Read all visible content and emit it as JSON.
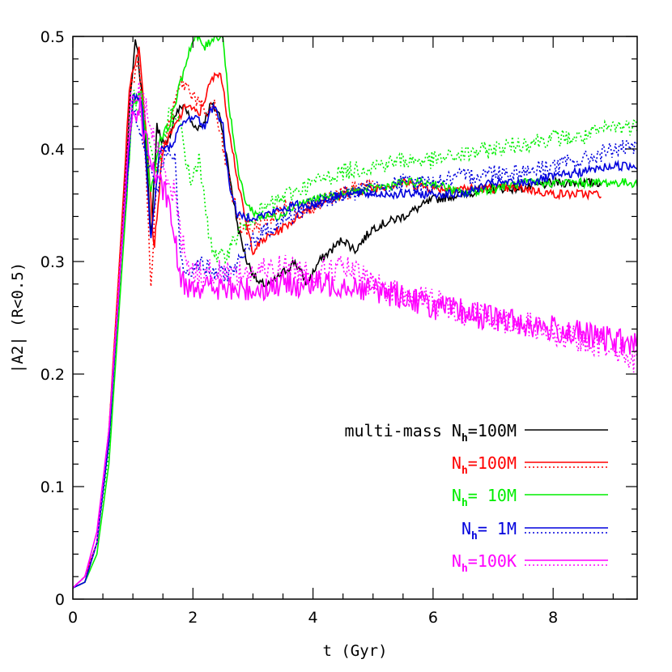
{
  "chart_data": {
    "type": "line",
    "title": "",
    "xlabel": "t (Gyr)",
    "ylabel": "|A2| (R<0.5)",
    "xlim": [
      0,
      9.4
    ],
    "ylim": [
      0,
      0.5
    ],
    "xticks": [
      0,
      2,
      4,
      6,
      8
    ],
    "xtick_labels": [
      "0",
      "2",
      "4",
      "6",
      "8"
    ],
    "yticks": [
      0,
      0.1,
      0.2,
      0.3,
      0.4,
      0.5
    ],
    "ytick_labels": [
      "0",
      "0.1",
      "0.2",
      "0.3",
      "0.4",
      "0.5"
    ],
    "grid": false,
    "legend_placement": "bottom-right",
    "legend": [
      {
        "prefix": "multi-mass ",
        "label": "N",
        "sub": "h",
        "value": "=100M",
        "color": "#000000",
        "dotted": false
      },
      {
        "prefix": "",
        "label": "N",
        "sub": "h",
        "value": "=100M",
        "color": "#ff0000",
        "dotted": true
      },
      {
        "prefix": "",
        "label": "N",
        "sub": "h",
        "value": "=  10M",
        "color": "#00ee00",
        "dotted": false
      },
      {
        "prefix": "",
        "label": "N",
        "sub": "h",
        "value": "=   1M",
        "color": "#0000dd",
        "dotted": true
      },
      {
        "prefix": "",
        "label": "N",
        "sub": "h",
        "value": "=100K",
        "color": "#ff00ff",
        "dotted": true
      }
    ],
    "series": [
      {
        "name": "multi-mass Nh=100M",
        "color": "#000000",
        "style": "solid",
        "noise": 0.004,
        "x": [
          0,
          0.2,
          0.4,
          0.6,
          0.8,
          0.95,
          1.05,
          1.2,
          1.3,
          1.4,
          1.55,
          1.7,
          1.85,
          2.0,
          2.15,
          2.3,
          2.45,
          2.6,
          2.75,
          2.9,
          3.1,
          3.3,
          3.5,
          3.7,
          3.9,
          4.1,
          4.3,
          4.5,
          4.7,
          5.0,
          5.5,
          6.0,
          6.5,
          7.0,
          7.5,
          8.0,
          8.5,
          8.8
        ],
        "y": [
          0.01,
          0.015,
          0.05,
          0.14,
          0.3,
          0.44,
          0.5,
          0.42,
          0.32,
          0.42,
          0.4,
          0.43,
          0.44,
          0.42,
          0.42,
          0.44,
          0.43,
          0.38,
          0.33,
          0.3,
          0.28,
          0.28,
          0.29,
          0.3,
          0.28,
          0.3,
          0.31,
          0.32,
          0.31,
          0.33,
          0.34,
          0.355,
          0.36,
          0.365,
          0.365,
          0.37,
          0.37,
          0.37
        ]
      },
      {
        "name": "Nh=100M",
        "color": "#ff0000",
        "style": "solid",
        "noise": 0.004,
        "x": [
          0,
          0.2,
          0.4,
          0.6,
          0.8,
          0.95,
          1.1,
          1.25,
          1.35,
          1.5,
          1.7,
          1.9,
          2.1,
          2.3,
          2.45,
          2.6,
          2.75,
          2.9,
          3.0,
          3.2,
          3.5,
          4.0,
          4.5,
          5.0,
          5.5,
          6.0,
          6.5,
          7.0,
          7.5,
          8.0,
          8.5,
          8.8
        ],
        "y": [
          0.01,
          0.02,
          0.05,
          0.15,
          0.32,
          0.46,
          0.49,
          0.4,
          0.31,
          0.4,
          0.42,
          0.44,
          0.43,
          0.46,
          0.47,
          0.42,
          0.37,
          0.33,
          0.31,
          0.32,
          0.33,
          0.35,
          0.36,
          0.365,
          0.37,
          0.365,
          0.365,
          0.365,
          0.365,
          0.36,
          0.36,
          0.36
        ]
      },
      {
        "name": "Nh=100M (dotted)",
        "color": "#ff0000",
        "style": "dotted",
        "noise": 0.008,
        "x": [
          0,
          0.2,
          0.4,
          0.6,
          0.8,
          0.95,
          1.1,
          1.25,
          1.3,
          1.4,
          1.6,
          1.8,
          2.0,
          2.2,
          2.35,
          2.5,
          2.65,
          2.8,
          3.0,
          3.3,
          3.6,
          4.0,
          4.5,
          5.0
        ],
        "y": [
          0.01,
          0.02,
          0.05,
          0.15,
          0.32,
          0.45,
          0.48,
          0.35,
          0.28,
          0.38,
          0.42,
          0.46,
          0.45,
          0.43,
          0.44,
          0.4,
          0.36,
          0.33,
          0.33,
          0.34,
          0.35,
          0.35,
          0.36,
          0.37
        ]
      },
      {
        "name": "Nh=10M",
        "color": "#00ee00",
        "style": "solid",
        "noise": 0.004,
        "x": [
          0,
          0.2,
          0.4,
          0.6,
          0.8,
          1.0,
          1.15,
          1.3,
          1.45,
          1.6,
          1.8,
          1.95,
          2.05,
          2.2,
          2.35,
          2.5,
          2.6,
          2.75,
          2.9,
          3.1,
          3.4,
          3.7,
          4.0,
          4.5,
          5.0,
          5.5,
          6.0,
          6.5,
          7.0,
          7.5,
          8.0,
          8.5,
          9.0,
          9.4
        ],
        "y": [
          0.01,
          0.015,
          0.04,
          0.12,
          0.28,
          0.44,
          0.45,
          0.36,
          0.41,
          0.42,
          0.46,
          0.49,
          0.5,
          0.49,
          0.5,
          0.5,
          0.44,
          0.38,
          0.35,
          0.34,
          0.34,
          0.35,
          0.355,
          0.36,
          0.365,
          0.37,
          0.37,
          0.36,
          0.365,
          0.37,
          0.37,
          0.37,
          0.37,
          0.37
        ]
      },
      {
        "name": "Nh=10M (dotted)",
        "color": "#00ee00",
        "style": "dotted",
        "noise": 0.008,
        "x": [
          0,
          0.2,
          0.4,
          0.6,
          0.8,
          1.0,
          1.2,
          1.4,
          1.6,
          1.8,
          1.95,
          2.1,
          2.25,
          2.4,
          2.6,
          2.8,
          3.0,
          3.3,
          3.6,
          4.0,
          4.5,
          5.0,
          5.5,
          6.0,
          6.5,
          7.0,
          7.5,
          8.0,
          8.5,
          9.0,
          9.4
        ],
        "y": [
          0.01,
          0.02,
          0.05,
          0.13,
          0.3,
          0.45,
          0.42,
          0.38,
          0.43,
          0.42,
          0.37,
          0.39,
          0.33,
          0.3,
          0.31,
          0.33,
          0.34,
          0.35,
          0.36,
          0.37,
          0.38,
          0.385,
          0.39,
          0.39,
          0.395,
          0.4,
          0.405,
          0.41,
          0.41,
          0.42,
          0.42
        ]
      },
      {
        "name": "Nh=1M",
        "color": "#0000dd",
        "style": "solid",
        "noise": 0.004,
        "x": [
          0,
          0.2,
          0.4,
          0.6,
          0.8,
          1.0,
          1.15,
          1.3,
          1.45,
          1.6,
          1.8,
          2.0,
          2.2,
          2.35,
          2.5,
          2.6,
          2.75,
          2.9,
          3.1,
          3.4,
          3.7,
          4.0,
          4.5,
          5.0,
          5.5,
          6.0,
          6.5,
          7.0,
          7.5,
          8.0,
          8.5,
          9.0,
          9.4
        ],
        "y": [
          0.01,
          0.015,
          0.05,
          0.14,
          0.3,
          0.45,
          0.44,
          0.32,
          0.4,
          0.4,
          0.42,
          0.43,
          0.42,
          0.44,
          0.42,
          0.37,
          0.34,
          0.34,
          0.34,
          0.345,
          0.35,
          0.35,
          0.36,
          0.36,
          0.36,
          0.36,
          0.36,
          0.37,
          0.37,
          0.375,
          0.38,
          0.385,
          0.385
        ]
      },
      {
        "name": "Nh=1M (dotted)",
        "color": "#0000dd",
        "style": "dotted",
        "noise": 0.008,
        "x": [
          0,
          0.2,
          0.4,
          0.6,
          0.8,
          1.0,
          1.2,
          1.4,
          1.55,
          1.7,
          1.8,
          1.9,
          2.1,
          2.3,
          2.6,
          2.8,
          3.0,
          3.3,
          3.6,
          4.0,
          4.5,
          5.0,
          5.5,
          6.0,
          6.5,
          7.0,
          7.5,
          8.0,
          8.5,
          9.0,
          9.4
        ],
        "y": [
          0.01,
          0.02,
          0.05,
          0.14,
          0.3,
          0.44,
          0.4,
          0.36,
          0.4,
          0.39,
          0.3,
          0.29,
          0.3,
          0.29,
          0.29,
          0.3,
          0.32,
          0.33,
          0.34,
          0.35,
          0.36,
          0.365,
          0.37,
          0.37,
          0.375,
          0.38,
          0.38,
          0.385,
          0.39,
          0.4,
          0.4
        ]
      },
      {
        "name": "Nh=100K",
        "color": "#ff00ff",
        "style": "solid",
        "noise": 0.012,
        "x": [
          0,
          0.2,
          0.4,
          0.6,
          0.8,
          0.95,
          1.1,
          1.25,
          1.4,
          1.55,
          1.7,
          1.8,
          2.0,
          2.5,
          3.0,
          3.5,
          4.0,
          4.5,
          5.0,
          5.5,
          6.0,
          6.5,
          7.0,
          7.5,
          8.0,
          8.5,
          9.0,
          9.4
        ],
        "y": [
          0.01,
          0.02,
          0.06,
          0.15,
          0.3,
          0.42,
          0.44,
          0.4,
          0.37,
          0.36,
          0.32,
          0.28,
          0.28,
          0.275,
          0.275,
          0.28,
          0.28,
          0.28,
          0.275,
          0.27,
          0.26,
          0.255,
          0.25,
          0.245,
          0.24,
          0.235,
          0.23,
          0.225
        ]
      },
      {
        "name": "Nh=100K (dotted)",
        "color": "#ff00ff",
        "style": "dotted",
        "noise": 0.012,
        "x": [
          0,
          0.2,
          0.4,
          0.6,
          0.8,
          0.95,
          1.1,
          1.25,
          1.4,
          1.55,
          1.7,
          1.8,
          2.0,
          2.5,
          3.0,
          3.5,
          4.0,
          4.5,
          5.0,
          5.5,
          6.0,
          6.5,
          7.0,
          7.5,
          8.0,
          8.5,
          9.0,
          9.4
        ],
        "y": [
          0.01,
          0.02,
          0.05,
          0.15,
          0.31,
          0.44,
          0.45,
          0.43,
          0.4,
          0.38,
          0.36,
          0.32,
          0.29,
          0.29,
          0.29,
          0.295,
          0.29,
          0.295,
          0.28,
          0.27,
          0.265,
          0.255,
          0.25,
          0.245,
          0.235,
          0.23,
          0.225,
          0.21
        ]
      }
    ]
  }
}
